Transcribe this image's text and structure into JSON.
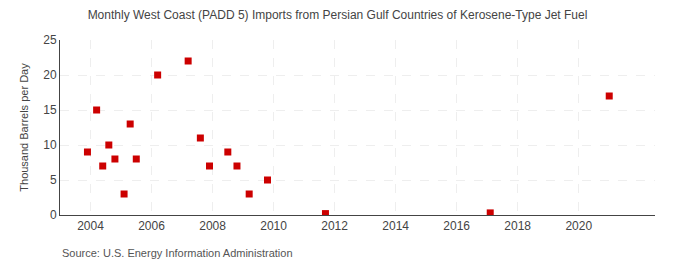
{
  "chart_data": {
    "type": "scatter",
    "title": "Monthly West Coast (PADD 5) Imports from Persian Gulf Countries of Kerosene-Type Jet Fuel",
    "ylabel": "Thousand Barrels per Day",
    "annotations": [
      "Source: U.S. Energy Information Administration"
    ],
    "x": [
      2003.9,
      2004.2,
      2004.4,
      2004.6,
      2004.8,
      2005.1,
      2005.3,
      2005.5,
      2006.2,
      2007.2,
      2007.6,
      2007.9,
      2008.5,
      2008.8,
      2009.2,
      2009.8,
      2011.7,
      2017.1,
      2021.0
    ],
    "values": [
      9,
      15,
      7,
      10,
      8,
      3,
      13,
      8,
      20,
      22,
      11,
      7,
      9,
      7,
      3,
      5,
      0.2,
      0.3,
      17
    ],
    "color": "#cc0000",
    "marker": "square",
    "xlim": [
      2003.0,
      2022.5
    ],
    "ylim": [
      0,
      25
    ],
    "xticks": [
      2004,
      2006,
      2008,
      2010,
      2012,
      2014,
      2016,
      2018,
      2020
    ],
    "yticks": [
      0,
      5,
      10,
      15,
      20,
      25
    ],
    "grid": true
  }
}
